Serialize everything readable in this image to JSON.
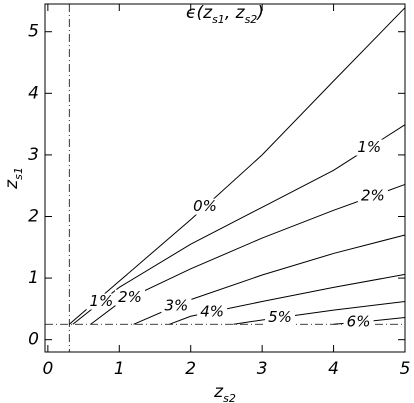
{
  "chart_data": {
    "type": "contour",
    "title": [
      "ϵ(",
      "z",
      "s1",
      ", ",
      "z",
      "s2",
      ")"
    ],
    "x_label": [
      "z",
      "s2"
    ],
    "y_label": [
      "z",
      "s1"
    ],
    "xlim": [
      -0.04,
      5
    ],
    "ylim": [
      -0.2,
      5.45
    ],
    "xticks": [
      0,
      1,
      2,
      3,
      4,
      5
    ],
    "yticks": [
      0,
      1,
      2,
      3,
      4,
      5
    ],
    "reference_lines": {
      "x": 0.3,
      "y": 0.25
    },
    "color": "#000000",
    "series": [
      {
        "name": "0%",
        "x": [
          0.3,
          1,
          2,
          3,
          4,
          5
        ],
        "values": [
          0.25,
          0.95,
          1.95,
          3.0,
          4.2,
          5.39
        ],
        "label_x": [
          2.2
        ]
      },
      {
        "name": "1%",
        "x": [
          0.35,
          1,
          2,
          3,
          4,
          5
        ],
        "values": [
          0.25,
          0.85,
          1.55,
          2.15,
          2.75,
          3.49
        ],
        "label_x": [
          0.75,
          4.5
        ]
      },
      {
        "name": "2%",
        "x": [
          0.6,
          1,
          2,
          3,
          4,
          5
        ],
        "values": [
          0.25,
          0.6,
          1.15,
          1.65,
          2.1,
          2.52
        ],
        "label_x": [
          1.15,
          4.55
        ]
      },
      {
        "name": "3%",
        "x": [
          1.2,
          2,
          3,
          4,
          5
        ],
        "values": [
          0.25,
          0.65,
          1.05,
          1.4,
          1.7
        ],
        "label_x": [
          1.8
        ]
      },
      {
        "name": "4%",
        "x": [
          1.7,
          2,
          3,
          4,
          5
        ],
        "values": [
          0.25,
          0.38,
          0.62,
          0.85,
          1.06
        ],
        "label_x": [
          2.3
        ]
      },
      {
        "name": "5%",
        "x": [
          2.6,
          3,
          4,
          5
        ],
        "values": [
          0.25,
          0.32,
          0.48,
          0.62
        ],
        "label_x": [
          3.25
        ]
      },
      {
        "name": "6%",
        "x": [
          4,
          4.5,
          5
        ],
        "values": [
          0.25,
          0.3,
          0.36
        ],
        "label_x": [
          4.35
        ]
      }
    ]
  }
}
